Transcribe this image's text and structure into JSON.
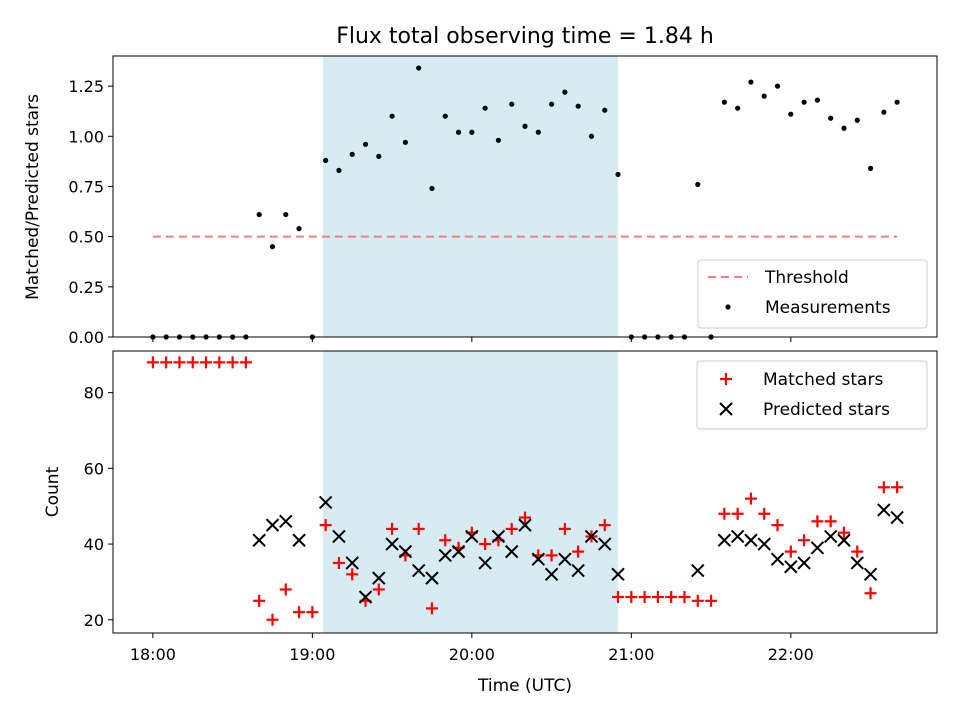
{
  "title": "Flux total observing time = 1.84 h",
  "chart_data": [
    {
      "type": "scatter",
      "panel": "top",
      "ylabel": "Matched/Predicted stars",
      "ylim": [
        0,
        1.4
      ],
      "yticks": [
        0,
        0.25,
        0.5,
        0.75,
        1.0,
        1.25
      ],
      "ytick_labels": [
        "0.00",
        "0.25",
        "0.50",
        "0.75",
        "1.00",
        "1.25"
      ],
      "xlim": [
        "17:45",
        "22:55"
      ],
      "legend": {
        "placement": "lower-right",
        "entries": [
          "Threshold",
          "Measurements"
        ]
      },
      "threshold": {
        "name": "Threshold",
        "value": 0.5,
        "x_start": "18:00",
        "x_end": "22:40",
        "color": "#f08080",
        "style": "dashed"
      },
      "shaded_region": {
        "x_start": "19:04",
        "x_end": "20:55",
        "color": "#add8e6"
      },
      "series": [
        {
          "name": "Measurements",
          "color": "#000000",
          "marker": "dot",
          "x": [
            "18:00",
            "18:05",
            "18:10",
            "18:15",
            "18:20",
            "18:25",
            "18:30",
            "18:35",
            "18:40",
            "18:45",
            "18:50",
            "18:55",
            "19:00",
            "19:05",
            "19:10",
            "19:15",
            "19:20",
            "19:25",
            "19:30",
            "19:35",
            "19:40",
            "19:45",
            "19:50",
            "19:55",
            "20:00",
            "20:05",
            "20:10",
            "20:15",
            "20:20",
            "20:25",
            "20:30",
            "20:35",
            "20:40",
            "20:45",
            "20:50",
            "20:55",
            "21:00",
            "21:05",
            "21:10",
            "21:15",
            "21:20",
            "21:25",
            "21:30",
            "21:35",
            "21:40",
            "21:45",
            "21:50",
            "21:55",
            "22:00",
            "22:05",
            "22:10",
            "22:15",
            "22:20",
            "22:25",
            "22:30",
            "22:35",
            "22:40"
          ],
          "y": [
            0,
            0,
            0,
            0,
            0,
            0,
            0,
            0,
            0.61,
            0.45,
            0.61,
            0.54,
            0,
            0.88,
            0.83,
            0.91,
            0.96,
            0.9,
            1.1,
            0.97,
            1.34,
            0.74,
            1.1,
            1.02,
            1.02,
            1.14,
            0.98,
            1.16,
            1.05,
            1.02,
            1.16,
            1.22,
            1.15,
            1.0,
            1.13,
            0.81,
            0,
            0,
            0,
            0,
            0,
            0.76,
            0,
            1.17,
            1.14,
            1.27,
            1.2,
            1.25,
            1.11,
            1.17,
            1.18,
            1.09,
            1.04,
            1.08,
            0.84,
            1.12,
            1.17
          ]
        }
      ]
    },
    {
      "type": "scatter",
      "panel": "bottom",
      "xlabel": "Time (UTC)",
      "ylabel": "Count",
      "ylim": [
        16.5,
        91
      ],
      "yticks": [
        20,
        40,
        60,
        80
      ],
      "xlim": [
        "17:45",
        "22:55"
      ],
      "xticks": [
        "18:00",
        "19:00",
        "20:00",
        "21:00",
        "22:00"
      ],
      "legend": {
        "placement": "upper-right",
        "entries": [
          "Matched stars",
          "Predicted stars"
        ]
      },
      "shaded_region": {
        "x_start": "19:04",
        "x_end": "20:55",
        "color": "#add8e6"
      },
      "series": [
        {
          "name": "Matched stars",
          "color": "#ff0000",
          "marker": "plus",
          "x": [
            "18:00",
            "18:05",
            "18:10",
            "18:15",
            "18:20",
            "18:25",
            "18:30",
            "18:35",
            "18:40",
            "18:45",
            "18:50",
            "18:55",
            "19:00",
            "19:05",
            "19:10",
            "19:15",
            "19:20",
            "19:25",
            "19:30",
            "19:35",
            "19:40",
            "19:45",
            "19:50",
            "19:55",
            "20:00",
            "20:05",
            "20:10",
            "20:15",
            "20:20",
            "20:25",
            "20:30",
            "20:35",
            "20:40",
            "20:45",
            "20:50",
            "20:55",
            "21:00",
            "21:05",
            "21:10",
            "21:15",
            "21:20",
            "21:25",
            "21:30",
            "21:35",
            "21:40",
            "21:45",
            "21:50",
            "21:55",
            "22:00",
            "22:05",
            "22:10",
            "22:15",
            "22:20",
            "22:25",
            "22:30",
            "22:35",
            "22:40"
          ],
          "y": [
            88,
            88,
            88,
            88,
            88,
            88,
            88,
            88,
            25,
            20,
            28,
            22,
            22,
            45,
            35,
            32,
            25,
            28,
            44,
            37,
            44,
            23,
            41,
            39,
            43,
            40,
            41,
            44,
            47,
            37,
            37,
            44,
            38,
            42,
            45,
            26,
            26,
            26,
            26,
            26,
            26,
            25,
            25,
            48,
            48,
            52,
            48,
            45,
            38,
            41,
            46,
            46,
            43,
            38,
            27,
            55,
            55
          ]
        },
        {
          "name": "Predicted stars",
          "color": "#000000",
          "marker": "x",
          "x": [
            "18:40",
            "18:45",
            "18:50",
            "18:55",
            "19:05",
            "19:10",
            "19:15",
            "19:20",
            "19:25",
            "19:30",
            "19:35",
            "19:40",
            "19:45",
            "19:50",
            "19:55",
            "20:00",
            "20:05",
            "20:10",
            "20:15",
            "20:20",
            "20:25",
            "20:30",
            "20:35",
            "20:40",
            "20:45",
            "20:50",
            "20:55",
            "21:25",
            "21:35",
            "21:40",
            "21:45",
            "21:50",
            "21:55",
            "22:00",
            "22:05",
            "22:10",
            "22:15",
            "22:20",
            "22:25",
            "22:30",
            "22:35",
            "22:40"
          ],
          "y": [
            41,
            45,
            46,
            41,
            51,
            42,
            35,
            26,
            31,
            40,
            38,
            33,
            31,
            37,
            38,
            42,
            35,
            42,
            38,
            45,
            36,
            32,
            36,
            33,
            42,
            40,
            32,
            33,
            41,
            42,
            41,
            40,
            36,
            34,
            35,
            39,
            42,
            41,
            35,
            32,
            49,
            47
          ]
        }
      ]
    }
  ]
}
